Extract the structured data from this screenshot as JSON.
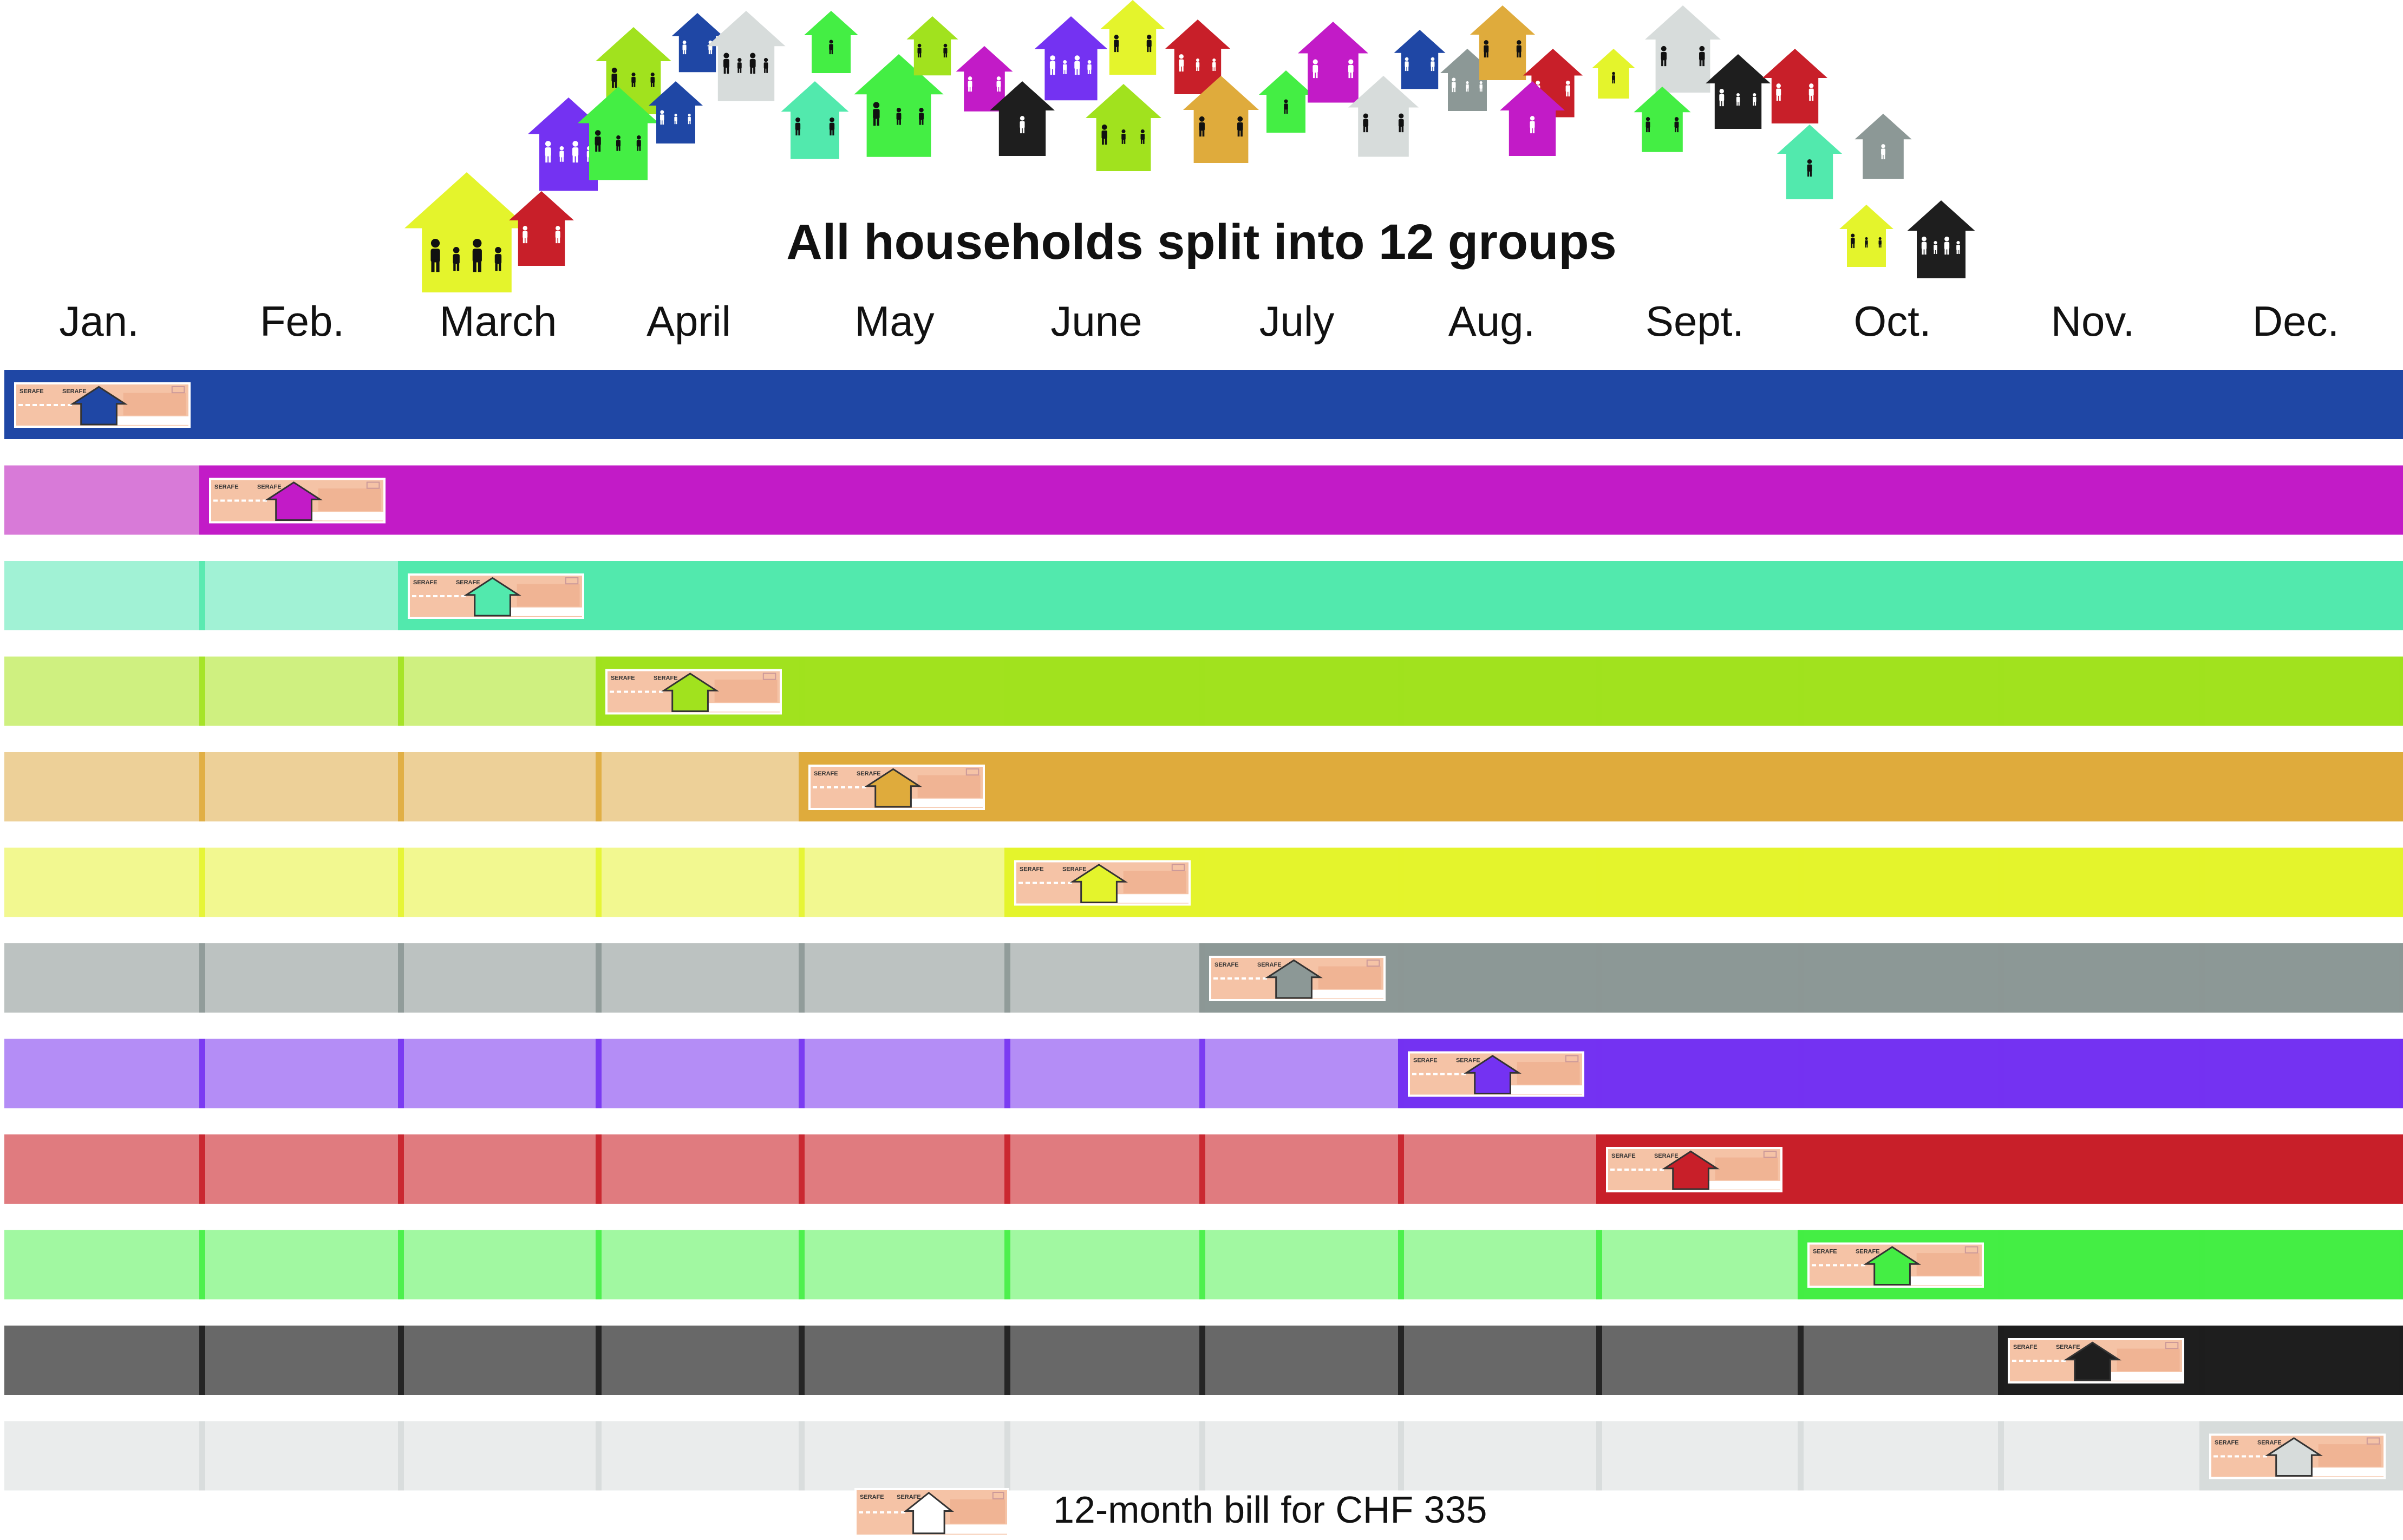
{
  "title": "All households split into 12 groups",
  "months": [
    "Jan.",
    "Feb.",
    "March",
    "April",
    "May",
    "June",
    "July",
    "Aug.",
    "Sept.",
    "Oct.",
    "Nov.",
    "Dec."
  ],
  "groups": [
    {
      "color": "#1f47a5",
      "light": "#1f47a5",
      "billing_month": 0
    },
    {
      "color": "#c21bc7",
      "light": "#d87ad8",
      "billing_month": 1
    },
    {
      "color": "#52e9ad",
      "light": "#a1f2d5",
      "billing_month": 2
    },
    {
      "color": "#a1e21e",
      "light": "#cff080",
      "billing_month": 3
    },
    {
      "color": "#dfab3c",
      "light": "#edd098",
      "billing_month": 4
    },
    {
      "color": "#e4f42c",
      "light": "#f2f890",
      "billing_month": 5
    },
    {
      "color": "#8c9896",
      "light": "#bcc2c1",
      "billing_month": 6
    },
    {
      "color": "#7432f2",
      "light": "#b48df6",
      "billing_month": 7
    },
    {
      "color": "#c81f29",
      "light": "#e07b7f",
      "billing_month": 8
    },
    {
      "color": "#44ee44",
      "light": "#a1f8a1",
      "billing_month": 9
    },
    {
      "color": "#1e1e1e",
      "light": "#686868",
      "billing_month": 10
    },
    {
      "color": "#d7dcdb",
      "light": "#eaecec",
      "billing_month": 11
    }
  ],
  "bill": {
    "label": "SERAFE"
  },
  "legend": {
    "text": "12-month bill for CHF 335"
  },
  "icons": {
    "house": "house-icon",
    "people": "family-icon",
    "bill": "bill-icon"
  }
}
